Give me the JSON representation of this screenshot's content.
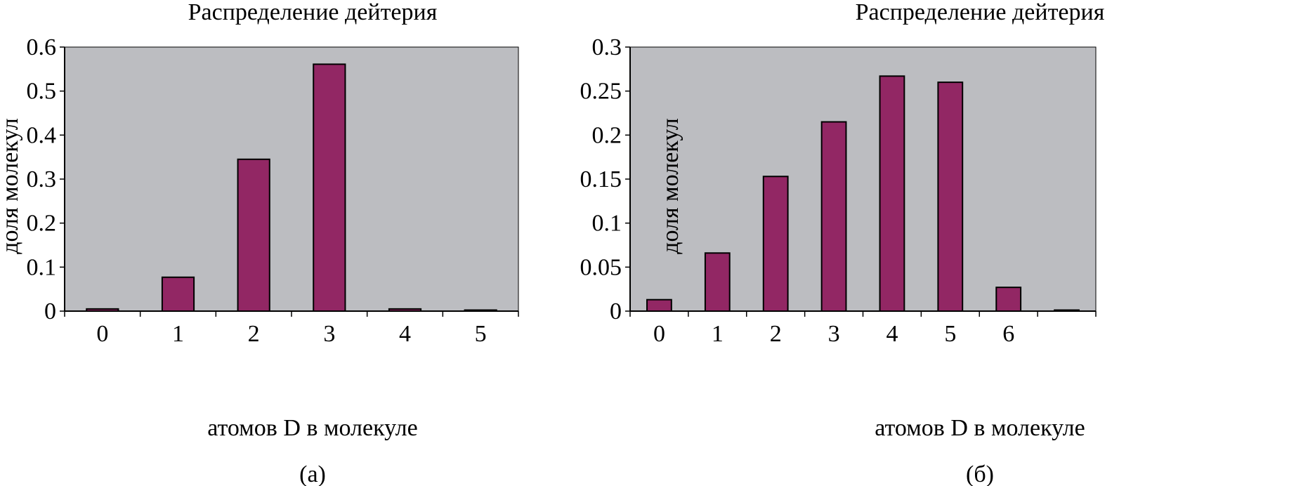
{
  "chart_data": [
    {
      "type": "bar",
      "title": "Распределение дейтерия",
      "xlabel": "атомов D в молекуле",
      "ylabel": "доля молекул",
      "panel_label": "(а)",
      "categories": [
        "0",
        "1",
        "2",
        "3",
        "4",
        "5"
      ],
      "values": [
        0.005,
        0.077,
        0.345,
        0.561,
        0.005,
        0.002
      ],
      "ylim": [
        0,
        0.6
      ],
      "yticks": [
        "0",
        "0.1",
        "0.2",
        "0.3",
        "0.4",
        "0.5",
        "0.6"
      ],
      "ytick_values": [
        0,
        0.1,
        0.2,
        0.3,
        0.4,
        0.5,
        0.6
      ],
      "grid": false,
      "legend": "none",
      "bar_color": "#922764",
      "plot_bg_color": "#BCBDC1"
    },
    {
      "type": "bar",
      "title": "Распределение дейтерия",
      "xlabel": "атомов D в молекуле",
      "ylabel": "доля молекул",
      "panel_label": "(б)",
      "categories": [
        "0",
        "1",
        "2",
        "3",
        "4",
        "5",
        "6",
        ""
      ],
      "values": [
        0.013,
        0.066,
        0.153,
        0.215,
        0.267,
        0.26,
        0.027,
        0.001
      ],
      "ylim": [
        0,
        0.3
      ],
      "yticks": [
        "0",
        "0.05",
        "0.1",
        "0.15",
        "0.2",
        "0.25",
        "0.3"
      ],
      "ytick_values": [
        0,
        0.05,
        0.1,
        0.15,
        0.2,
        0.25,
        0.3
      ],
      "grid": false,
      "legend": "none",
      "bar_color": "#922764",
      "plot_bg_color": "#BCBDC1"
    }
  ]
}
